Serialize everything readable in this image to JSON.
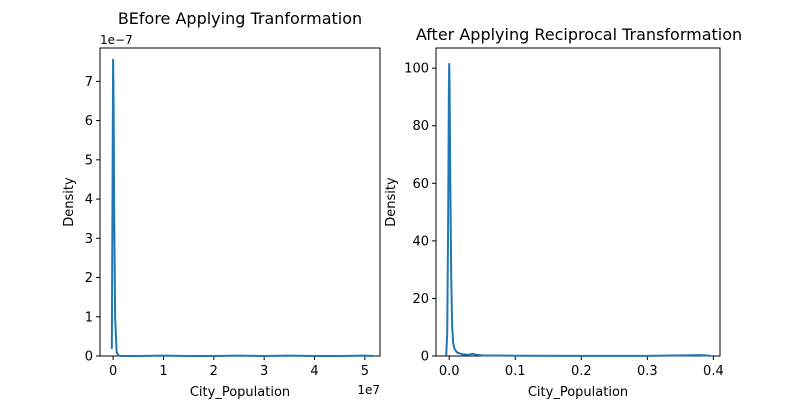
{
  "colors": {
    "line": "#1f77b4",
    "background": "#ffffff",
    "axes": "#000000"
  },
  "chart_data": [
    {
      "type": "line",
      "title": "BEfore Applying Tranformation",
      "xlabel": "City_Population",
      "ylabel": "Density",
      "x_offset_label": "1e7",
      "y_offset_label": "1e−7",
      "xlim": [
        -2600000,
        53000000
      ],
      "ylim": [
        0,
        7.85e-07
      ],
      "x_ticks": [
        0,
        10000000,
        20000000,
        30000000,
        40000000,
        50000000
      ],
      "x_tick_labels": [
        "0",
        "1",
        "2",
        "3",
        "4",
        "5"
      ],
      "y_ticks": [
        0,
        1e-07,
        2e-07,
        3e-07,
        4e-07,
        5e-07,
        6e-07,
        7e-07
      ],
      "y_tick_labels": [
        "0",
        "1",
        "2",
        "3",
        "4",
        "5",
        "6",
        "7"
      ],
      "grid": false,
      "series": [
        {
          "x": [
            -250000,
            -100000,
            0,
            100000,
            200000,
            400000,
            700000,
            1000000,
            1500000,
            5000000,
            10000000,
            15000000,
            20000000,
            25000000,
            30000000,
            35000000,
            40000000,
            45000000,
            50000000,
            51500000
          ],
          "y": [
            2e-08,
            4.5e-07,
            7.55e-07,
            6.5e-07,
            4e-07,
            1e-07,
            1e-08,
            2e-09,
            0,
            0,
            1e-09,
            0,
            0,
            1e-09,
            0,
            1e-09,
            0,
            0,
            1e-09,
            0
          ]
        }
      ]
    },
    {
      "type": "line",
      "title": "After Applying Reciprocal Transformation",
      "xlabel": "City_Population",
      "ylabel": "Density",
      "xlim": [
        -0.02,
        0.41
      ],
      "ylim": [
        0,
        107
      ],
      "x_ticks": [
        0.0,
        0.1,
        0.2,
        0.3,
        0.4
      ],
      "x_tick_labels": [
        "0.0",
        "0.1",
        "0.2",
        "0.3",
        "0.4"
      ],
      "y_ticks": [
        0,
        20,
        40,
        60,
        80,
        100
      ],
      "y_tick_labels": [
        "0",
        "20",
        "40",
        "60",
        "80",
        "100"
      ],
      "grid": false,
      "series": [
        {
          "x": [
            -0.0045,
            -0.003,
            -0.0015,
            -0.0005,
            0.0,
            0.0005,
            0.0015,
            0.003,
            0.0045,
            0.006,
            0.008,
            0.012,
            0.02,
            0.03,
            0.035,
            0.04,
            0.05,
            0.1,
            0.2,
            0.3,
            0.38,
            0.395
          ],
          "y": [
            0.5,
            8,
            50,
            92,
            101.5,
            95,
            65,
            28,
            10,
            4.5,
            2.5,
            1.2,
            0.6,
            0.4,
            0.8,
            0.5,
            0.2,
            0.1,
            0.05,
            0.05,
            0.3,
            0.1
          ]
        }
      ]
    }
  ]
}
